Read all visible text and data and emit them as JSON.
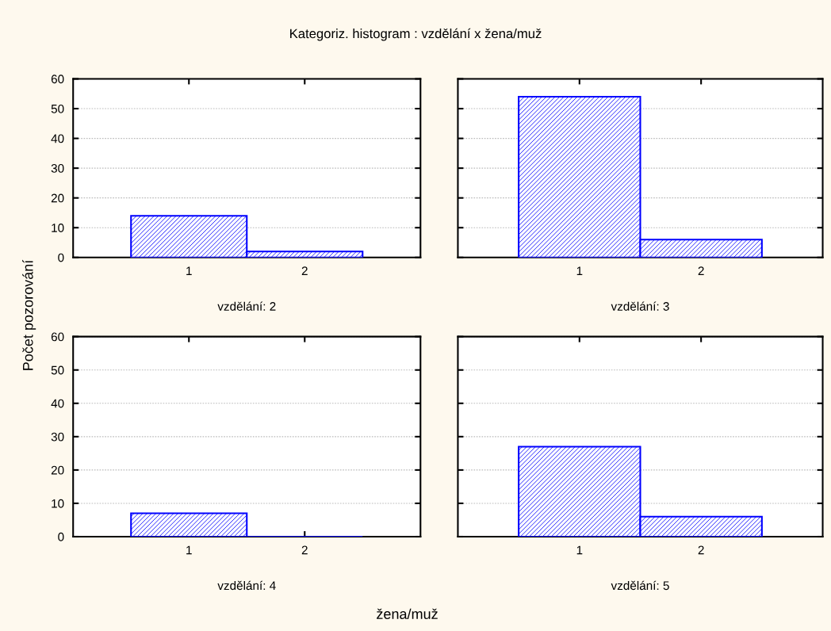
{
  "chart_data": [
    {
      "type": "bar",
      "title": "Kategoriz. histogram : vzdělání x žena/muž",
      "ylabel": "Počet pozorování",
      "xlabel": "vzdělání: 2",
      "categories": [
        "1",
        "2"
      ],
      "values": [
        14,
        2
      ],
      "color": "#0000ff",
      "ylim": [
        0,
        60
      ],
      "yticks": [
        0,
        10,
        20,
        30,
        40,
        50,
        60
      ],
      "grid": "y"
    },
    {
      "type": "bar",
      "xlabel": "vzdělání: 3",
      "categories": [
        "1",
        "2"
      ],
      "values": [
        54,
        6
      ],
      "color": "#0000ff",
      "ylim": [
        0,
        60
      ],
      "yticks": [
        0,
        10,
        20,
        30,
        40,
        50,
        60
      ],
      "grid": "y",
      "tick_labels": "x"
    },
    {
      "type": "bar",
      "xlabel": "vzdělání: 4",
      "categories": [
        "1",
        "2"
      ],
      "values": [
        7,
        0
      ],
      "color": "#0000ff",
      "ylim": [
        0,
        60
      ],
      "yticks": [
        0,
        10,
        20,
        30,
        40,
        50,
        60
      ],
      "grid": "y"
    },
    {
      "type": "bar",
      "xlabel": "vzdělání: 5",
      "categories": [
        "1",
        "2"
      ],
      "values": [
        27,
        6
      ],
      "color": "#0000ff",
      "ylim": [
        0,
        60
      ],
      "yticks": [
        0,
        10,
        20,
        30,
        40,
        50,
        60
      ],
      "grid": "y",
      "tick_labels": "x",
      "annotations": [
        "žena/muž"
      ]
    }
  ]
}
